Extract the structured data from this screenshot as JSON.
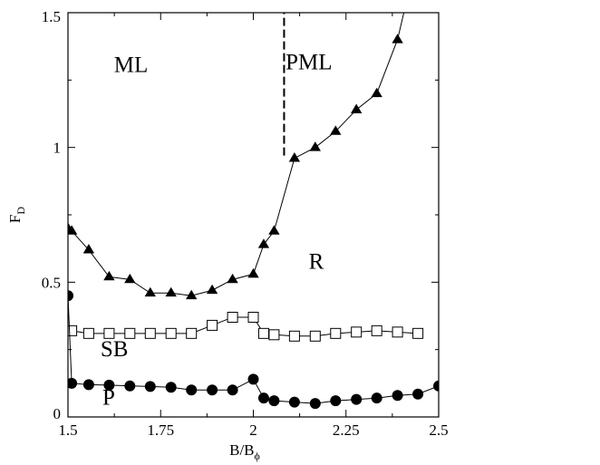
{
  "chart_data": {
    "type": "line",
    "xlabel_main": "B/B",
    "xlabel_sub": "ϕ",
    "ylabel_main": "F",
    "ylabel_sub": "D",
    "xlim": [
      1.5,
      2.5
    ],
    "ylim": [
      0,
      1.5
    ],
    "x_ticks": [
      1.5,
      1.75,
      2,
      2.25,
      2.5
    ],
    "x_tick_labels": [
      "1.5",
      "1.75",
      "2",
      "2.25",
      "2.5"
    ],
    "y_ticks": [
      0,
      0.5,
      1,
      1.5
    ],
    "y_tick_labels": [
      "0",
      "0.5",
      "1",
      "1.5"
    ],
    "grid": false,
    "series": [
      {
        "marker": "filled-triangle",
        "x": [
          1.5,
          1.51,
          1.556,
          1.611,
          1.667,
          1.722,
          1.778,
          1.833,
          1.889,
          1.944,
          2.0,
          2.028,
          2.056,
          2.111,
          2.167,
          2.222,
          2.278,
          2.333,
          2.389,
          2.5
        ],
        "y": [
          0.7,
          0.69,
          0.62,
          0.52,
          0.51,
          0.46,
          0.46,
          0.45,
          0.47,
          0.51,
          0.53,
          0.64,
          0.69,
          0.96,
          1.0,
          1.06,
          1.14,
          1.2,
          1.4,
          2.05
        ]
      },
      {
        "marker": "open-square",
        "x": [
          1.51,
          1.556,
          1.611,
          1.667,
          1.722,
          1.778,
          1.833,
          1.889,
          1.944,
          2.0,
          2.028,
          2.056,
          2.111,
          2.167,
          2.222,
          2.278,
          2.333,
          2.389,
          2.444
        ],
        "y": [
          0.32,
          0.31,
          0.31,
          0.31,
          0.31,
          0.31,
          0.31,
          0.34,
          0.37,
          0.37,
          0.31,
          0.305,
          0.3,
          0.3,
          0.31,
          0.315,
          0.32,
          0.315,
          0.31
        ]
      },
      {
        "marker": "filled-circle",
        "x": [
          1.5,
          1.51,
          1.556,
          1.611,
          1.667,
          1.722,
          1.778,
          1.833,
          1.889,
          1.944,
          2.0,
          2.028,
          2.056,
          2.111,
          2.167,
          2.222,
          2.278,
          2.333,
          2.389,
          2.444,
          2.5
        ],
        "y": [
          0.45,
          0.125,
          0.12,
          0.118,
          0.115,
          0.113,
          0.11,
          0.1,
          0.1,
          0.1,
          0.14,
          0.07,
          0.06,
          0.055,
          0.05,
          0.06,
          0.065,
          0.07,
          0.08,
          0.085,
          0.115
        ]
      }
    ],
    "boundary": {
      "style": "dashed",
      "x": 2.083,
      "y_from": 0.97,
      "y_to": 1.5
    },
    "annotations": [
      {
        "text": "ML",
        "x": 1.67,
        "y": 1.28
      },
      {
        "text": "PML",
        "x": 2.15,
        "y": 1.29
      },
      {
        "text": "R",
        "x": 2.17,
        "y": 0.55
      },
      {
        "text": "SB",
        "x": 1.625,
        "y": 0.225
      },
      {
        "text": "P",
        "x": 1.61,
        "y": 0.045
      }
    ]
  }
}
